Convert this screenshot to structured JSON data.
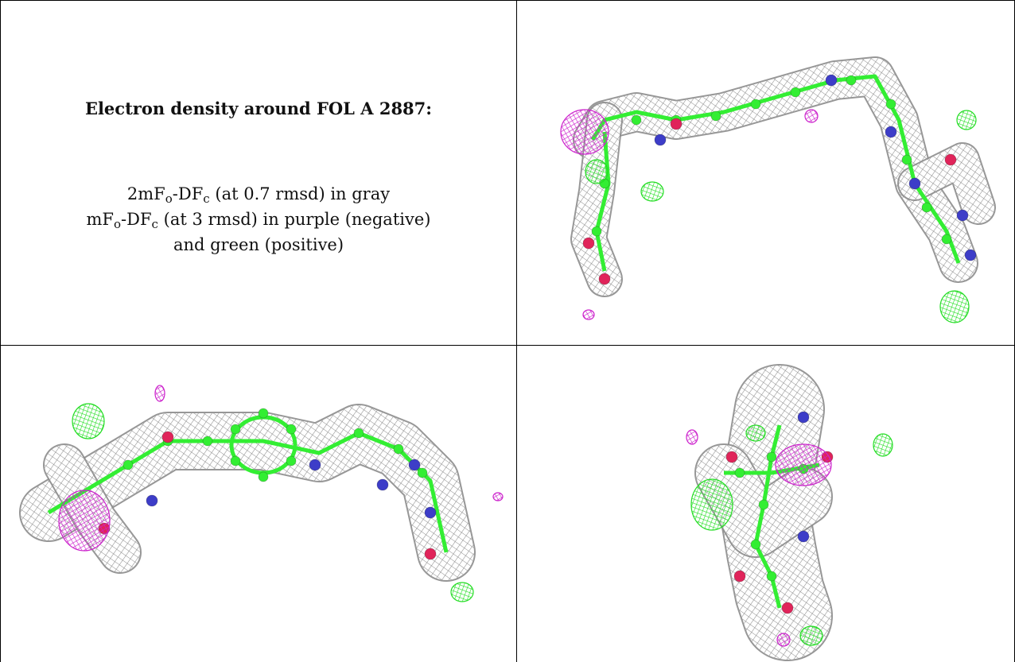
{
  "caption": {
    "title": "Electron density around FOL A 2887:",
    "line1": {
      "pre": "2mF",
      "sub1": "o",
      "mid": "-DF",
      "sub2": "c",
      "post": " (at 0.7 rmsd) in gray"
    },
    "line2": {
      "pre": "mF",
      "sub1": "o",
      "mid": "-DF",
      "sub2": "c",
      "post": " (at 3 rmsd) in purple (negative)"
    },
    "line3": "and green (positive)"
  },
  "colors": {
    "mesh_gray": "#8c8c8c",
    "carbon_green": "#33ee33",
    "nitrogen_blue": "#3d3dc8",
    "oxygen_red": "#e0245a",
    "negative_purple": "#cc22cc",
    "positive_green": "#22dd22"
  },
  "views": [
    {
      "name": "top-right-view"
    },
    {
      "name": "bottom-left-view"
    },
    {
      "name": "bottom-right-view"
    }
  ]
}
